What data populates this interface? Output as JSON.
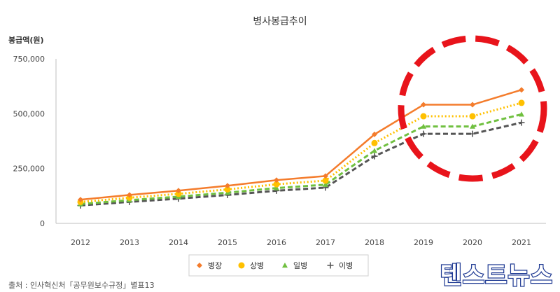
{
  "chart_data": {
    "type": "line",
    "title": "병사봉급추이",
    "ylabel": "봉급액(원)",
    "xlabel": "",
    "categories": [
      "2012",
      "2013",
      "2014",
      "2015",
      "2016",
      "2017",
      "2018",
      "2019",
      "2020",
      "2021"
    ],
    "ylim": [
      0,
      750000
    ],
    "yticks": [
      0,
      250000,
      500000,
      750000
    ],
    "ytick_labels": [
      "0",
      "250,000",
      "500,000",
      "750,000"
    ],
    "grid": false,
    "legend_position": "bottom",
    "series": [
      {
        "name": "병장",
        "color": "#f47c2c",
        "marker": "diamond",
        "line": "solid",
        "values": [
          108000,
          129600,
          149300,
          171400,
          197000,
          216000,
          405700,
          540900,
          540900,
          608500
        ]
      },
      {
        "name": "상병",
        "color": "#ffc000",
        "marker": "circle",
        "line": "dotted",
        "values": [
          97500,
          117000,
          134600,
          154800,
          178000,
          195000,
          366200,
          488200,
          488200,
          549200
        ]
      },
      {
        "name": "일병",
        "color": "#70c040",
        "marker": "triangle",
        "line": "dashed",
        "values": [
          88200,
          105800,
          121800,
          140000,
          161000,
          176400,
          331300,
          441700,
          441700,
          496900
        ]
      },
      {
        "name": "이병",
        "color": "#555555",
        "marker": "plus",
        "line": "dashed",
        "values": [
          81600,
          97900,
          112700,
          129500,
          148800,
          163000,
          306100,
          408100,
          408100,
          459100
        ]
      }
    ],
    "annotation": {
      "shape": "dashed-ellipse",
      "color": "#e8141b",
      "around_categories": [
        "2019",
        "2020",
        "2021"
      ]
    }
  },
  "source_note": "출처 : 인사혁신처「공무원보수규정」별표13",
  "watermark": "텐스트뉴스"
}
